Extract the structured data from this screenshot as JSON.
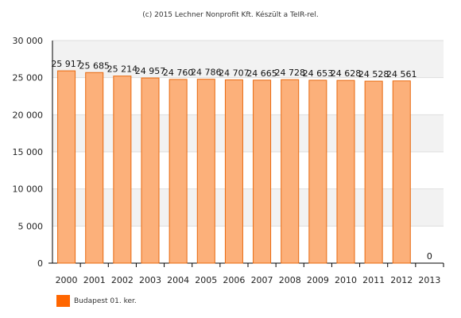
{
  "chart_data": {
    "type": "bar",
    "title": "(c) 2015 Lechner Nonprofit Kft. Készült a TeIR-rel.",
    "categories": [
      "2000",
      "2001",
      "2002",
      "2003",
      "2004",
      "2005",
      "2006",
      "2007",
      "2008",
      "2009",
      "2010",
      "2011",
      "2012",
      "2013"
    ],
    "series": [
      {
        "name": "Budapest 01. ker.",
        "values": [
          25917,
          25685,
          25214,
          24957,
          24760,
          24786,
          24707,
          24665,
          24728,
          24653,
          24628,
          24528,
          24561,
          0
        ],
        "data_labels": [
          "25 917",
          "25 685",
          "25 214",
          "24 957",
          "24 760",
          "24 786",
          "24 707",
          "24 665",
          "24 728",
          "24 653",
          "24 628",
          "24 528",
          "24 561",
          "0"
        ]
      }
    ],
    "ylim": [
      0,
      30000
    ],
    "yticks": [
      0,
      5000,
      10000,
      15000,
      20000,
      25000,
      30000
    ],
    "ytick_labels": [
      "0",
      "5 000",
      "10 000",
      "15 000",
      "20 000",
      "25 000",
      "30 000"
    ],
    "grid": true,
    "banded_background": true,
    "legend_position": "bottom-left",
    "xlabel": "",
    "ylabel": "",
    "colors": {
      "bar_fill": "#fcb07a",
      "bar_stroke": "#e8690f",
      "legend_swatch": "#ff6600",
      "band": "#f2f2f2",
      "grid": "#dddddd",
      "axis": "#000000"
    }
  }
}
